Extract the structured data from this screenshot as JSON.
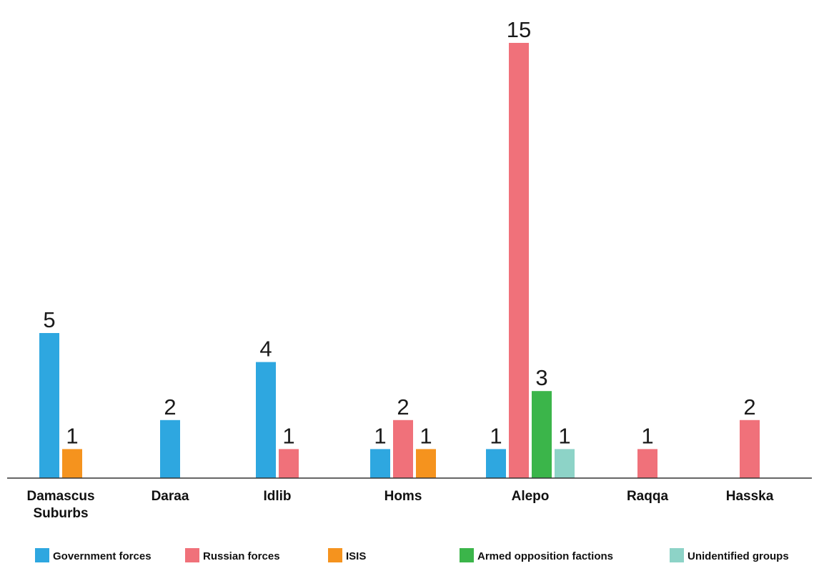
{
  "chart_data": {
    "type": "bar",
    "title": "",
    "xlabel": "",
    "ylabel": "",
    "ylim": [
      0,
      15
    ],
    "grid": false,
    "legend_placement": "bottom",
    "categories": [
      "Damascus Suburbs",
      "Daraa",
      "Idlib",
      "Homs",
      "Alepo",
      "Raqqa",
      "Hasska"
    ],
    "category_lines": [
      [
        "Damascus",
        "Suburbs"
      ],
      [
        "Daraa"
      ],
      [
        "Idlib"
      ],
      [
        "Homs"
      ],
      [
        "Alepo"
      ],
      [
        "Raqqa"
      ],
      [
        "Hasska"
      ]
    ],
    "series": [
      {
        "name": "Government forces",
        "color": "#2ea7e0",
        "values": [
          5,
          2,
          4,
          1,
          1,
          0,
          0
        ]
      },
      {
        "name": "Russian forces",
        "color": "#f0717a",
        "values": [
          0,
          0,
          1,
          2,
          15,
          1,
          2
        ]
      },
      {
        "name": "ISIS",
        "color": "#f5931e",
        "values": [
          1,
          0,
          0,
          1,
          0,
          0,
          0
        ]
      },
      {
        "name": "Armed opposition factions",
        "color": "#3bb54a",
        "values": [
          0,
          0,
          0,
          0,
          3,
          0,
          0
        ]
      },
      {
        "name": "Unidentified groups",
        "color": "#8dd3c7",
        "values": [
          0,
          0,
          0,
          0,
          1,
          0,
          0
        ]
      }
    ]
  }
}
